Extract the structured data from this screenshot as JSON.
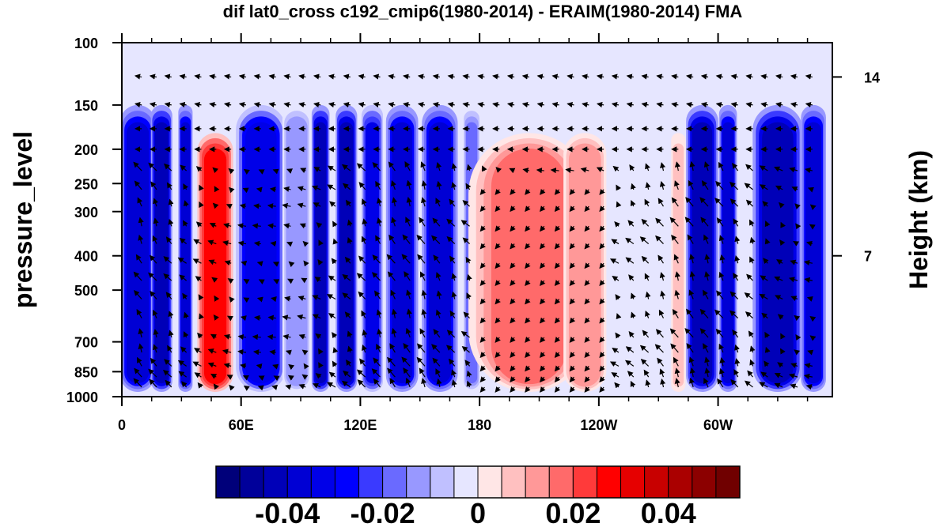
{
  "chart_data": {
    "type": "heatmap",
    "title": "dif lat0_cross c192_cmip6(1980-2014) - ERAIM(1980-2014) FMA",
    "xlabel": "",
    "ylabel": "pressure_level",
    "ylabel_right": "Height (km)",
    "x_ticks": [
      {
        "lon": 0,
        "label": "0"
      },
      {
        "lon": 60,
        "label": "60E"
      },
      {
        "lon": 120,
        "label": "120E"
      },
      {
        "lon": 180,
        "label": "180"
      },
      {
        "lon": 240,
        "label": "120W"
      },
      {
        "lon": 300,
        "label": "60W"
      }
    ],
    "xlim": [
      0,
      357.5
    ],
    "y_ticks": [
      100,
      150,
      200,
      250,
      300,
      400,
      500,
      700,
      850,
      1000
    ],
    "ylim": [
      1000,
      100
    ],
    "y_scale": "log",
    "right_ticks": [
      {
        "label": "14",
        "pressure": 125
      },
      {
        "label": "7",
        "pressure": 400
      }
    ],
    "colorbar": {
      "levels": [
        -0.055,
        -0.05,
        -0.045,
        -0.04,
        -0.035,
        -0.03,
        -0.025,
        -0.02,
        -0.015,
        -0.01,
        -0.005,
        0.005,
        0.01,
        0.015,
        0.02,
        0.025,
        0.03,
        0.035,
        0.04,
        0.045,
        0.05,
        0.055
      ],
      "colors": [
        "#00007a",
        "#00009a",
        "#0000b8",
        "#0000d4",
        "#0000e8",
        "#0000ff",
        "#3a3aff",
        "#6a6aff",
        "#9898ff",
        "#c0c0ff",
        "#e6e6ff",
        "#ffe6e6",
        "#ffc0c0",
        "#ff9898",
        "#ff6a6a",
        "#ff3a3a",
        "#ff0000",
        "#e60000",
        "#c80000",
        "#aa0000",
        "#8c0000",
        "#700000"
      ],
      "labels": [
        {
          "value": -0.04,
          "text": "-0.04"
        },
        {
          "value": -0.02,
          "text": "-0.02"
        },
        {
          "value": 0,
          "text": "0"
        },
        {
          "value": 0.02,
          "text": "0.02"
        },
        {
          "value": 0.04,
          "text": "0.04"
        }
      ]
    },
    "anomaly_columns": [
      {
        "lon": 8,
        "width": 10,
        "value": -0.05
      },
      {
        "lon": 20,
        "width": 6,
        "value": -0.055
      },
      {
        "lon": 32,
        "width": 4,
        "value": -0.05
      },
      {
        "lon": 47,
        "width": 10,
        "value": 0.04
      },
      {
        "lon": 70,
        "width": 14,
        "value": -0.045
      },
      {
        "lon": 88,
        "width": 8,
        "value": -0.02
      },
      {
        "lon": 100,
        "width": 5,
        "value": -0.055
      },
      {
        "lon": 113,
        "width": 6,
        "value": -0.055
      },
      {
        "lon": 126,
        "width": 6,
        "value": -0.04
      },
      {
        "lon": 141,
        "width": 9,
        "value": -0.05
      },
      {
        "lon": 160,
        "width": 10,
        "value": -0.05
      },
      {
        "lon": 176,
        "width": 5,
        "value": -0.025
      },
      {
        "lon": 205,
        "width": 34,
        "value": 0.025
      },
      {
        "lon": 233,
        "width": 12,
        "value": 0.02
      },
      {
        "lon": 262,
        "width": 12,
        "value": -0.005
      },
      {
        "lon": 280,
        "width": 4,
        "value": 0.015
      },
      {
        "lon": 292,
        "width": 9,
        "value": -0.055
      },
      {
        "lon": 305,
        "width": 5,
        "value": -0.05
      },
      {
        "lon": 330,
        "width": 14,
        "value": -0.055
      },
      {
        "lon": 348,
        "width": 7,
        "value": -0.05
      }
    ]
  }
}
